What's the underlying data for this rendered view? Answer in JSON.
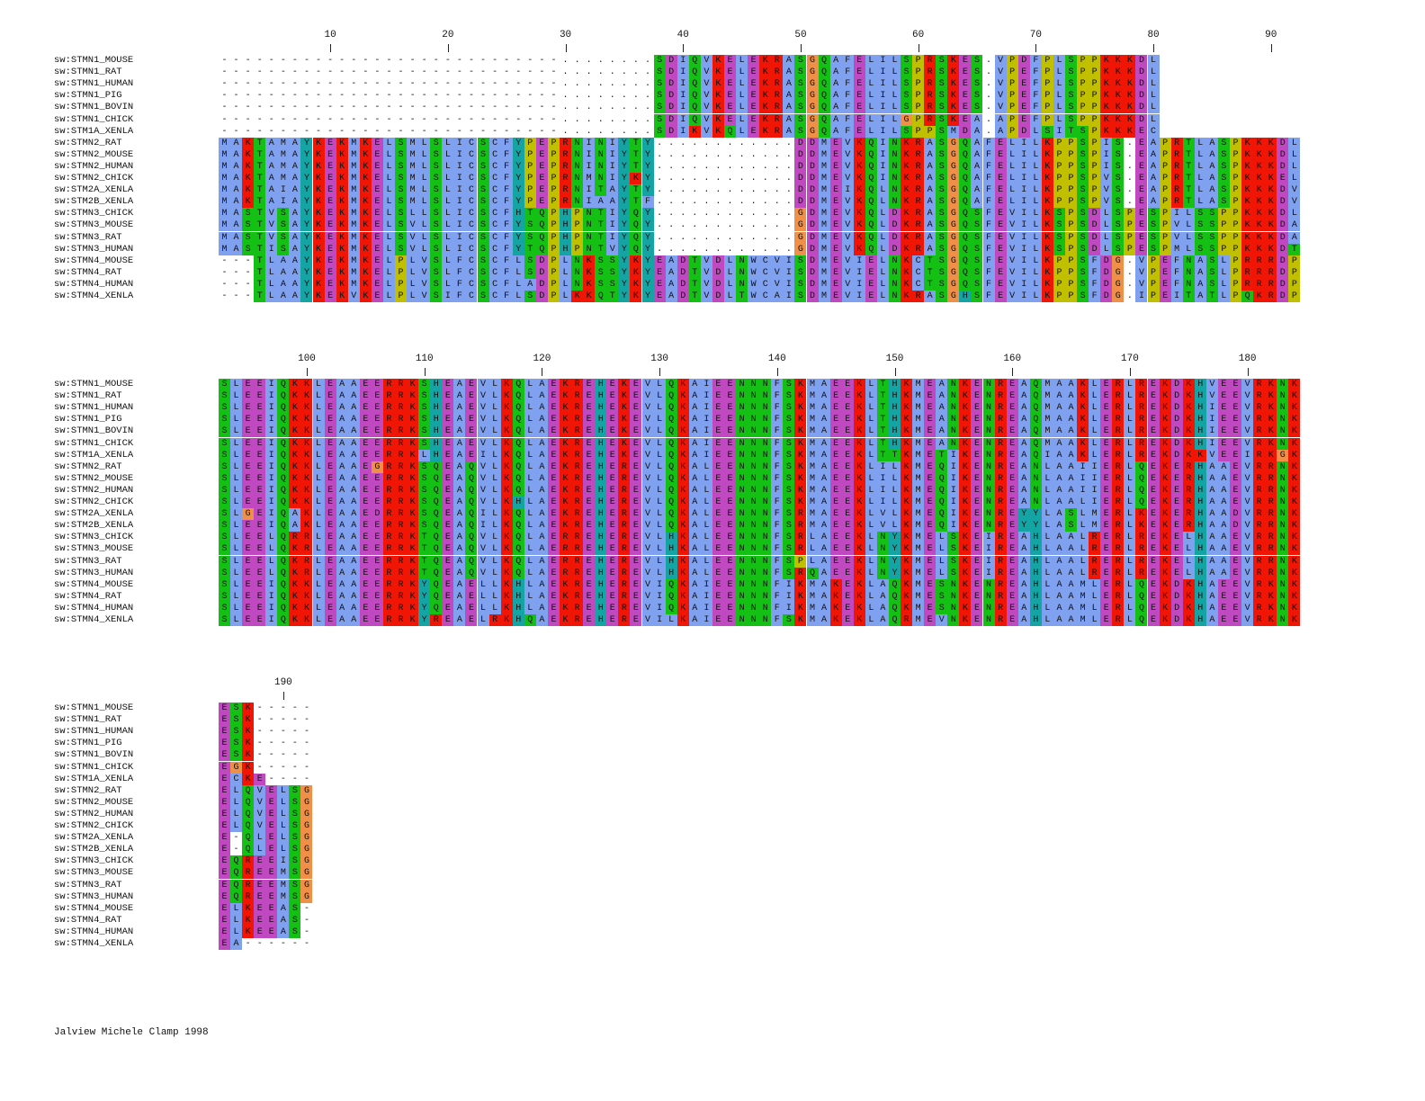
{
  "footer": "Jalview Michele Clamp 1998",
  "colors": {
    "A": "#80a0f0",
    "I": "#80a0f0",
    "L": "#80a0f0",
    "M": "#80a0f0",
    "F": "#80a0f0",
    "W": "#80a0f0",
    "V": "#80a0f0",
    "K": "#f01505",
    "R": "#f01505",
    "E": "#c048c0",
    "D": "#c048c0",
    "N": "#15c015",
    "Q": "#15c015",
    "S": "#15c015",
    "T": "#15c015",
    "C": "#80a0f0",
    "G": "#f09048",
    "P": "#c0c000",
    "H": "#15a4a4",
    "Y": "#15a4a4"
  },
  "names": [
    "sw:STMN1_MOUSE",
    "sw:STMN1_RAT",
    "sw:STMN1_HUMAN",
    "sw:STMN1_PIG",
    "sw:STMN1_BOVIN",
    "sw:STMN1_CHICK",
    "sw:STM1A_XENLA",
    "sw:STMN2_RAT",
    "sw:STMN2_MOUSE",
    "sw:STMN2_HUMAN",
    "sw:STMN2_CHICK",
    "sw:STM2A_XENLA",
    "sw:STM2B_XENLA",
    "sw:STMN3_CHICK",
    "sw:STMN3_MOUSE",
    "sw:STMN3_RAT",
    "sw:STMN3_HUMAN",
    "sw:STMN4_MOUSE",
    "sw:STMN4_RAT",
    "sw:STMN4_HUMAN",
    "sw:STMN4_XENLA"
  ],
  "blocks": [
    {
      "ticks": [
        10,
        20,
        30,
        40,
        50,
        60,
        70,
        80,
        90
      ],
      "seqs": [
        "-----------------------------........SDIQVKELEKRASGQAFELILSPRSKES.VPDFPLSPPKKKDL",
        "-----------------------------........SDIQVKELEKRASGQAFELILSPRSKES.VPEFPLSPPKKKDL",
        "-----------------------------........SDIQVKELEKRASGQAFELILSPRSKES.VPEFPLSPPKKKDL",
        "-----------------------------........SDIQVKELEKRASGQAFELILSPRSKES.VPEFPLSPPKKKDL",
        "-----------------------------........SDIQVKELEKRASGQAFELILSPRSKES.VPEFPLSPPKKKDL",
        "-----------------------------........SDIQVKELEKRASGQAFELILGPRSKEA.APEFPLSPPKKKDL",
        "-----------------------------........SDIKVKQLEKRASGQAFELILSPPSMDA.APDLSITSPKKKEC",
        "MAKTAMAYKEKMKELSMLSLICSCFYPEPRNINIYTY............DDMEVKQINKRASGQAFELILKPPSPIS.EAPRTLASPKKKDL",
        "MAKTAMAYKEKMKELSMLSLICSCFYPEPRNINIYTY............DDMEVKQINKRASGQAFELILKPPSPIS.EAPRTLASPKKKDL",
        "MAKTAMAYKEKMKELSMLSLICSCFYPEPRNINIYTY............DDMEVKQINKRASGQAFELILKPPSPIS.EAPRTLASPKKKDL",
        "MAKTAMAYKEKMKELSMLSLICSCFYPEPRNMNIYKY............DDMEVKQINKRASGQAFELILKPPSPVS.EAPRTLASPKKKEL",
        "MAKTAIAYKEKMKELSMLSLICSCFYPEPRNITAYTY............DDMEIKQLNKRASGQAFELILKPPSPVS.EAPRTLASPKKKDV",
        "MAKTAIAYKEKMKELSMLSLICSCFYPEPRNIAAYTF............DDMEVKQLNKRASGQAFELILKPPSPVS.EAPRTLASPKKKDV",
        "MASTVSAYKEKMKELSLLSLICSCFHTQPHPNTIYQY............GDMEVKQLDKRASGQSFEVILKSPSDLSPESPILSSPPKKKDL",
        "MASTVSAYKEKMKELSVLSLICSCFYSQPHPNTIYQY............GDMEVKQLDKRASGQSFEVILKSPSDLSPESPVLSSPPKKKDA",
        "MASTVSAYKEKMKELSVLSLICSCFYSQPHPNTIYQY............GDMEVKQLDKRASGQSFEVILKSPSDLSPESPVLSSPPKKKDA",
        "MASTISAYKEKMKELSVLSLICSCFYTQPHPNTVYQY............GDMEVKQLDKRASGQSFEVILKSPSDLSPESPMLSSPPKKKDT",
        "---TLAAYKEKMKELPLVSLFCSCFLSDPLNKSSYKYEADTVDLNWCVISDMEVIELNKCTSGQSFEVILKPPSFDG.VPEFNASLPRRRDP",
        "---TLAAYKEKMKELPLVSLFCSCFLSDPLNKSSYKYEADTVDLNWCVISDMEVIELNKCTSGQSFEVILKPPSFDG.VPEFNASLPRRRDP",
        "---TLAAYKEKMKELPLVSLFCSCFLADPLNKSSYKYEADTVDLNWCVISDMEVIELNKCTSGQSFEVILKPPSFDG.VPEFNASLPRRRDP",
        "---TLAAYKEKVKELPLVSIFCSCFLSDPLKKQTYKYEADTVDLTWCAISDMEVIELNKRASGHSFEVILKPPSFDG.IPEITATLPQKRDP"
      ]
    },
    {
      "ticks": [
        100,
        110,
        120,
        130,
        140,
        150,
        160,
        170,
        180
      ],
      "seqs": [
        "SLEEIQKKLEAAEERRKSHEAEVLKQLAEKREHEKEVLQKAIEENNNFSKMAEEKLTHKMEANKENREAQMAAKLERLREKDKHVEEVRKNK",
        "SLEEIQKKLEAAEERRKSHEAEVLKQLAEKREHEKEVLQKAIEENNNFSKMAEEKLTHKMEANKENREAQMAAKLERLREKDKHVEEVRKNK",
        "SLEEIQKKLEAAEERRKSHEAEVLKQLAEKREHEKEVLQKAIEENNNFSKMAEEKLTHKMEANKENREAQMAAKLERLREKDKHIEEVRKNK",
        "SLEEIQKKLEAAEERRKSHEAEVLKQLAEKREHEKEVLQKAIEENNNFSKMAEEKLTHKMEANKENREAQMAAKLERLREKDKHIEEVRKNK",
        "SLEEIQKKLEAAEERRKSHEAEVLKQLAEKREHEKEVLQKAIEENNNFSKMAEEKLTHKMEANKENREAQMAAKLERLREKDKHIEEVRKNK",
        "SLEEIQKKLEAAEERRKSHEAEVLKQLAEKREHEKEVLQKAIEENNNFSKMAEEKLTHKMEANKENREAQMAAKLERLREKDKHIEEVRKNK",
        "SLEEIQKKLEAAEERRKLHEAEILKQLAEKREHEKEVLQKAIEENNNFSKMAEEKLTTKMETIKENREAQIAAKLERLREKDKKVEEIRKGK",
        "SLEEIQKKLEAAEGRRKSQEAQVLKQLAEKREHEREVLQKALEENNNFSKMAEEKLILKMEQIKENREANLAAIIERLQEKERHAAEVRRNK",
        "SLEEIQKKLEAAEERRKSQEAQVLKQLAEKREHEREVLQKALEENNNFSKMAEEKLILKMEQIKENREANLAAIIERLQEKERHAAEVRRNK",
        "SLEEIQKKLEAAEERRKSQEAQVLKQLAEKREHEREVLQKALEENNNFSKMAEEKLILKMEQIKENREANLAAIIERLQEKERHAAEVRRNK",
        "SLEEIQKKLEAAEERRKSQEAQVLKHLAEKREHEREVLQKALEENNNFSKMAEEKLILKMEQIKENREANLAALIERLQEKERHAAEVRRNK",
        "SLGEIQAKLEAAEDRRKSQEAQILKQLAEKREHEREVLQKALEENNNFSRMAEEKLVLKMEQIKENREYYLASLMERLKEKERHAADVRRNK",
        "SLEEIQAKLEAAEERRKSQEAQILKQLAEKREHEREVLQKALEENNNFSRMAEEKLVLKMEQIKENREYYLASLMERLKEKERHAADVRRNK",
        "SLEELQRRLEAAEERRKTQEAQVLKQLAERREHEREVLHKALEENNNFSRLAEEKLNYKMELSKEIREAHLAALRERLREKELHAAEVRRNK",
        "SLEELQKRLEAAEERRKTQEAQVLKQLAERREHEREVLHKALEENNNFSRLAEEKLNYKMELSKEIREAHLAALRERLREKELHAAEVRRNK",
        "SLEELQKRLEAAEERRKTQEAQVLKQLAERREHEREVLHKALEENNNFSPLAEEKLNYKMELSKEIREAHLAALRERLREKELHAAEVRRNK",
        "SLEELQKRLEAAEERRKTQEAQVLKQLAERREHEREVLHKALEENNNFSRQAEEKLNYKMELSKEIREAHLAALRERLREKELHAAEVRRNK",
        "SLEEIQKKLEAAEERRKYQEAELLKHLAEKREHEREVIQKAIEENNNFIKMAKEKLAQKMESNKENREAHLAAMLERLQEKDKHAEEVRKNK",
        "SLEEIQKKLEAAEERRKYQEAELLKHLAEKREHEREVIQKAIEENNNFIKMAKEKLAQKMESNKENREAHLAAMLERLQEKDKHAEEVRKNK",
        "SLEEIQKKLEAAEERRKYQEAELLKHLAEKREHEREVIQKAIEENNNFIKMAKEKLAQKMESNKENREAHLAAMLERLQEKDKHAEEVRKNK",
        "SLEEIQKKLEAAEERRKYREAELRKHQAEKREHEREVILKAIEENNNFSKMAKEKLAQRMEVNKENREAHLAAMLERLQEKDKHAEEVRKNK"
      ]
    },
    {
      "ticks": [
        190
      ],
      "seqs": [
        "ESK-----",
        "ESK-----",
        "ESK-----",
        "ESK-----",
        "ESK-----",
        "EGK-----",
        "ECKE----",
        "ELQVELSG",
        "ELQVELSG",
        "ELQVELSG",
        "ELQVELSG",
        "E-QLELSG",
        "E-QLELSG",
        "EQREEISG",
        "EQREEMSG",
        "EQREEMSG",
        "EQREEMSG",
        "ELKEEAS-",
        "ELKEEAS-",
        "ELKEEAS-",
        "EA------"
      ]
    }
  ]
}
